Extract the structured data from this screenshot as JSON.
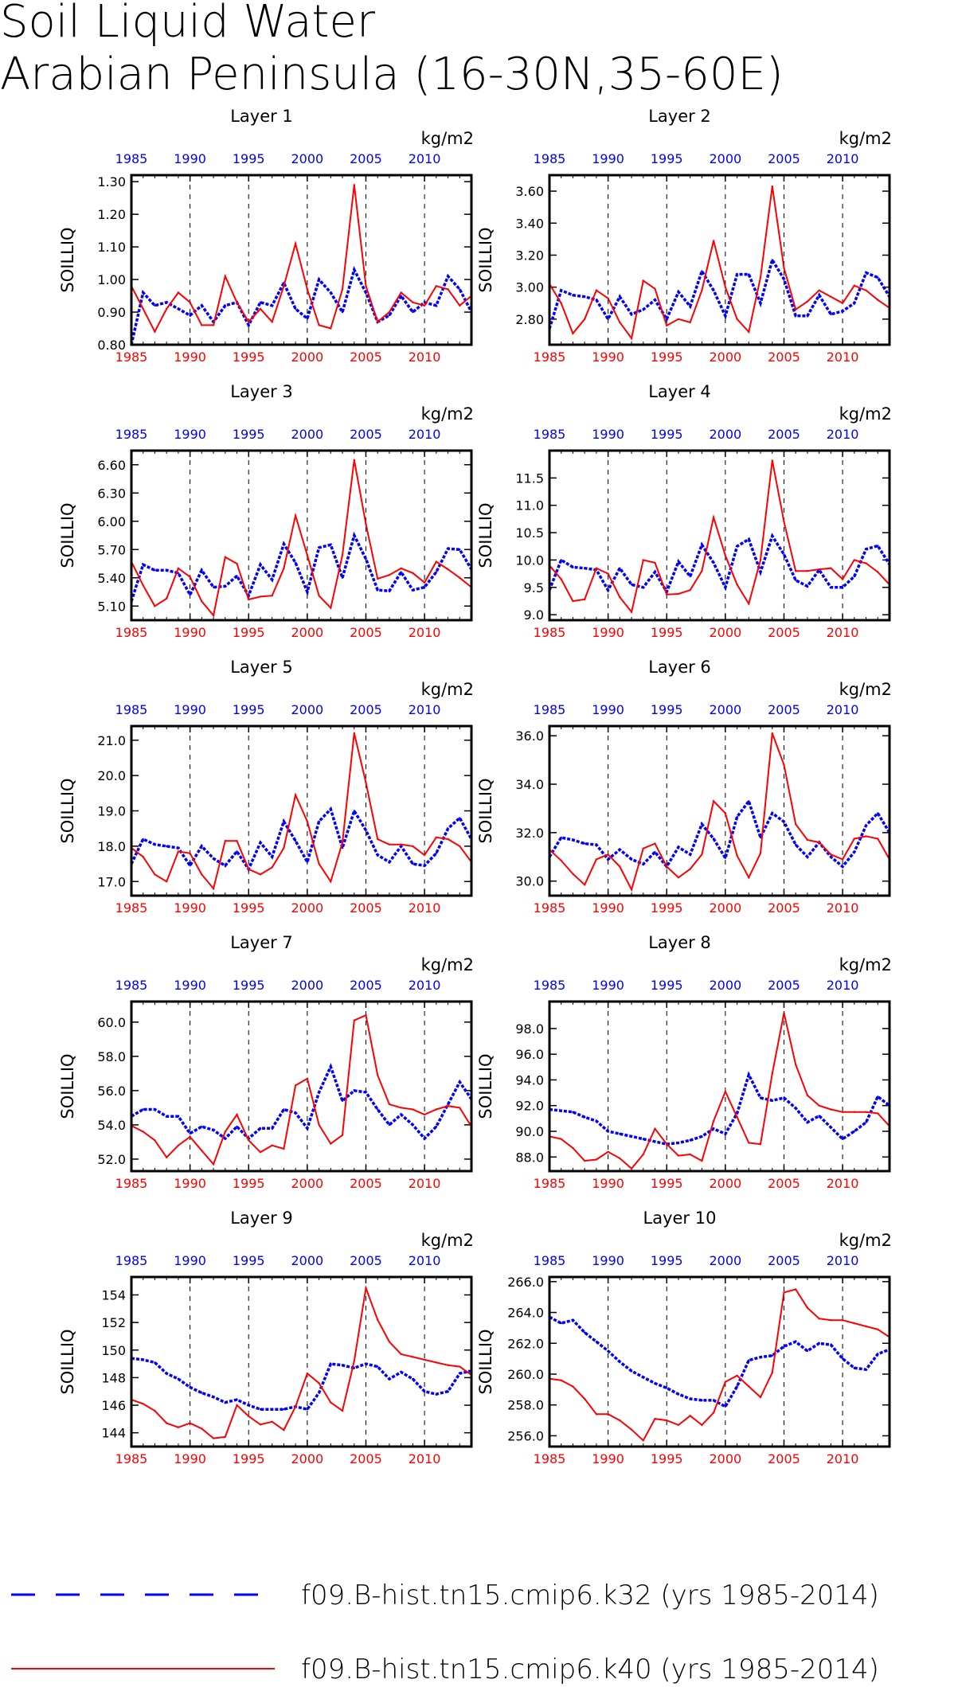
{
  "title_line1": "Soil Liquid Water",
  "title_line2": "Arabian Peninsula (16-30N,35-60E)",
  "units": "kg/m2",
  "ylabel": "SOILLIQ",
  "series_names": [
    "f09.B-hist.tn15.cmip6.k32 (yrs 1985-2014)",
    "f09.B-hist.tn15.cmip6.k40 (yrs 1985-2014)"
  ],
  "colors": {
    "blue": "#0000ff",
    "red": "#ff0000",
    "axis": "#000000"
  },
  "years": [
    1985,
    1986,
    1987,
    1988,
    1989,
    1990,
    1991,
    1992,
    1993,
    1994,
    1995,
    1996,
    1997,
    1998,
    1999,
    2000,
    2001,
    2002,
    2003,
    2004,
    2005,
    2006,
    2007,
    2008,
    2009,
    2010,
    2011,
    2012,
    2013,
    2014
  ],
  "xticks": [
    1985,
    1990,
    1995,
    2000,
    2005,
    2010
  ],
  "dashed_years": [
    1990,
    1995,
    2000,
    2005,
    2010
  ],
  "chart_data": [
    {
      "type": "line",
      "title": "Layer 1",
      "ylabel": "SOILLIQ",
      "ylim": [
        0.8,
        1.32
      ],
      "yticks": [
        "0.80",
        "0.90",
        "1.00",
        "1.10",
        "1.20",
        "1.30"
      ],
      "series": [
        {
          "name": "f09.B-hist.tn15.cmip6.k32 (yrs 1985-2014)",
          "color": "#0000ff",
          "style": "dashed",
          "values": [
            0.8,
            0.96,
            0.92,
            0.93,
            0.91,
            0.89,
            0.92,
            0.87,
            0.92,
            0.93,
            0.86,
            0.93,
            0.92,
            0.99,
            0.91,
            0.88,
            1.0,
            0.96,
            0.9,
            1.03,
            0.96,
            0.87,
            0.89,
            0.95,
            0.9,
            0.93,
            0.92,
            1.01,
            0.97,
            0.9
          ]
        },
        {
          "name": "f09.B-hist.tn15.cmip6.k40 (yrs 1985-2014)",
          "color": "#ff0000",
          "style": "solid",
          "values": [
            0.98,
            0.91,
            0.84,
            0.91,
            0.96,
            0.93,
            0.86,
            0.86,
            1.01,
            0.93,
            0.87,
            0.91,
            0.87,
            0.98,
            1.11,
            0.97,
            0.86,
            0.85,
            0.97,
            1.29,
            0.98,
            0.87,
            0.9,
            0.96,
            0.93,
            0.92,
            0.98,
            0.97,
            0.92,
            0.95
          ]
        }
      ]
    },
    {
      "type": "line",
      "title": "Layer 2",
      "ylabel": "SOILLIQ",
      "ylim": [
        2.64,
        3.7
      ],
      "yticks": [
        "2.80",
        "3.00",
        "3.20",
        "3.40",
        "3.60"
      ],
      "series": [
        {
          "name": "f09.B-hist.tn15.cmip6.k32 (yrs 1985-2014)",
          "color": "#0000ff",
          "style": "dashed",
          "values": [
            2.74,
            2.98,
            2.95,
            2.94,
            2.92,
            2.8,
            2.94,
            2.83,
            2.86,
            2.92,
            2.8,
            2.97,
            2.88,
            3.1,
            2.98,
            2.82,
            3.08,
            3.08,
            2.9,
            3.17,
            3.05,
            2.82,
            2.82,
            2.95,
            2.83,
            2.85,
            2.9,
            3.09,
            3.06,
            2.94
          ]
        },
        {
          "name": "f09.B-hist.tn15.cmip6.k40 (yrs 1985-2014)",
          "color": "#ff0000",
          "style": "solid",
          "values": [
            3.02,
            2.9,
            2.71,
            2.8,
            2.98,
            2.93,
            2.78,
            2.68,
            3.04,
            2.99,
            2.76,
            2.8,
            2.78,
            2.98,
            3.29,
            3.0,
            2.8,
            2.72,
            3.06,
            3.63,
            3.12,
            2.86,
            2.91,
            2.98,
            2.94,
            2.9,
            3.01,
            2.98,
            2.92,
            2.87
          ]
        }
      ]
    },
    {
      "type": "line",
      "title": "Layer 3",
      "ylabel": "SOILLIQ",
      "ylim": [
        4.95,
        6.75
      ],
      "yticks": [
        "5.10",
        "5.40",
        "5.70",
        "6.00",
        "6.30",
        "6.60"
      ],
      "series": [
        {
          "name": "f09.B-hist.tn15.cmip6.k32 (yrs 1985-2014)",
          "color": "#0000ff",
          "style": "dashed",
          "values": [
            5.15,
            5.54,
            5.48,
            5.48,
            5.45,
            5.22,
            5.48,
            5.3,
            5.31,
            5.42,
            5.21,
            5.54,
            5.38,
            5.76,
            5.56,
            5.25,
            5.72,
            5.75,
            5.4,
            5.85,
            5.6,
            5.27,
            5.26,
            5.46,
            5.27,
            5.3,
            5.46,
            5.71,
            5.7,
            5.49
          ]
        },
        {
          "name": "f09.B-hist.tn15.cmip6.k40 (yrs 1985-2014)",
          "color": "#ff0000",
          "style": "solid",
          "values": [
            5.57,
            5.32,
            5.1,
            5.18,
            5.5,
            5.41,
            5.15,
            5.0,
            5.62,
            5.55,
            5.17,
            5.2,
            5.21,
            5.5,
            6.06,
            5.64,
            5.21,
            5.08,
            5.64,
            6.65,
            5.97,
            5.39,
            5.43,
            5.5,
            5.45,
            5.35,
            5.57,
            5.49,
            5.4,
            5.3
          ]
        }
      ]
    },
    {
      "type": "line",
      "title": "Layer 4",
      "ylabel": "SOILLIQ",
      "ylim": [
        8.9,
        12.0
      ],
      "yticks": [
        "9.0",
        "9.5",
        "10.0",
        "10.5",
        "11.0",
        "11.5"
      ],
      "series": [
        {
          "name": "f09.B-hist.tn15.cmip6.k32 (yrs 1985-2014)",
          "color": "#0000ff",
          "style": "dashed",
          "values": [
            9.45,
            10.0,
            9.87,
            9.85,
            9.82,
            9.45,
            9.85,
            9.55,
            9.5,
            9.78,
            9.42,
            9.97,
            9.7,
            10.28,
            9.95,
            9.5,
            10.25,
            10.38,
            9.78,
            10.44,
            10.1,
            9.63,
            9.52,
            9.82,
            9.5,
            9.5,
            9.7,
            10.2,
            10.26,
            9.92
          ]
        },
        {
          "name": "f09.B-hist.tn15.cmip6.k40 (yrs 1985-2014)",
          "color": "#ff0000",
          "style": "solid",
          "values": [
            9.9,
            9.65,
            9.25,
            9.28,
            9.85,
            9.75,
            9.32,
            9.05,
            10.0,
            9.95,
            9.37,
            9.38,
            9.45,
            9.8,
            10.78,
            10.08,
            9.55,
            9.2,
            10.0,
            11.82,
            10.7,
            9.8,
            9.8,
            9.83,
            9.85,
            9.65,
            10.0,
            9.94,
            9.78,
            9.55
          ]
        }
      ]
    },
    {
      "type": "line",
      "title": "Layer 5",
      "ylabel": "SOILLIQ",
      "ylim": [
        16.6,
        21.4
      ],
      "yticks": [
        "17.0",
        "18.0",
        "19.0",
        "20.0",
        "21.0"
      ],
      "series": [
        {
          "name": "f09.B-hist.tn15.cmip6.k32 (yrs 1985-2014)",
          "color": "#0000ff",
          "style": "dashed",
          "values": [
            17.5,
            18.2,
            18.05,
            18.0,
            17.95,
            17.45,
            18.0,
            17.65,
            17.45,
            17.85,
            17.35,
            18.1,
            17.7,
            18.7,
            18.15,
            17.55,
            18.7,
            19.05,
            17.95,
            19.0,
            18.45,
            17.75,
            17.55,
            18.0,
            17.5,
            17.45,
            17.8,
            18.5,
            18.8,
            18.2
          ]
        },
        {
          "name": "f09.B-hist.tn15.cmip6.k40 (yrs 1985-2014)",
          "color": "#ff0000",
          "style": "solid",
          "values": [
            17.95,
            17.7,
            17.2,
            17.0,
            17.85,
            17.8,
            17.2,
            16.8,
            18.15,
            18.15,
            17.35,
            17.2,
            17.4,
            17.95,
            19.45,
            18.7,
            17.5,
            17.0,
            18.1,
            21.2,
            19.8,
            18.2,
            18.05,
            18.05,
            18.0,
            17.75,
            18.25,
            18.2,
            18.0,
            17.55
          ]
        }
      ]
    },
    {
      "type": "line",
      "title": "Layer 6",
      "ylabel": "SOILLIQ",
      "ylim": [
        29.4,
        36.4
      ],
      "yticks": [
        "30.0",
        "32.0",
        "34.0",
        "36.0"
      ],
      "series": [
        {
          "name": "f09.B-hist.tn15.cmip6.k32 (yrs 1985-2014)",
          "color": "#0000ff",
          "style": "dashed",
          "values": [
            31.0,
            31.8,
            31.7,
            31.55,
            31.5,
            30.9,
            31.3,
            30.9,
            30.7,
            31.2,
            30.6,
            31.4,
            31.1,
            32.35,
            31.75,
            30.95,
            32.65,
            33.3,
            31.8,
            32.8,
            32.45,
            31.5,
            31.0,
            31.6,
            31.0,
            30.6,
            31.2,
            32.3,
            32.8,
            32.0
          ]
        },
        {
          "name": "f09.B-hist.tn15.cmip6.k40 (yrs 1985-2014)",
          "color": "#ff0000",
          "style": "solid",
          "values": [
            31.3,
            30.85,
            30.3,
            29.85,
            30.9,
            31.1,
            30.6,
            29.65,
            31.35,
            31.55,
            30.6,
            30.15,
            30.5,
            31.1,
            33.3,
            32.8,
            31.05,
            30.15,
            31.15,
            36.1,
            34.8,
            32.35,
            31.7,
            31.6,
            31.1,
            30.9,
            31.75,
            31.85,
            31.75,
            30.9
          ]
        }
      ]
    },
    {
      "type": "line",
      "title": "Layer 7",
      "ylabel": "SOILLIQ",
      "ylim": [
        51.3,
        61.2
      ],
      "yticks": [
        "52.0",
        "54.0",
        "56.0",
        "58.0",
        "60.0"
      ],
      "series": [
        {
          "name": "f09.B-hist.tn15.cmip6.k32 (yrs 1985-2014)",
          "color": "#0000ff",
          "style": "dashed",
          "values": [
            54.5,
            54.9,
            54.9,
            54.5,
            54.5,
            53.5,
            53.9,
            53.7,
            53.2,
            53.9,
            53.2,
            53.8,
            53.8,
            54.9,
            54.7,
            53.8,
            55.9,
            57.4,
            55.4,
            56.0,
            55.9,
            54.9,
            54.0,
            54.6,
            54.0,
            53.2,
            53.9,
            55.2,
            56.5,
            55.5
          ]
        },
        {
          "name": "f09.B-hist.tn15.cmip6.k40 (yrs 1985-2014)",
          "color": "#ff0000",
          "style": "solid",
          "values": [
            53.95,
            53.6,
            53.1,
            52.1,
            52.8,
            53.3,
            52.5,
            51.7,
            53.6,
            54.6,
            53.1,
            52.4,
            52.8,
            52.6,
            56.3,
            56.7,
            54.0,
            52.9,
            53.4,
            60.1,
            60.4,
            56.9,
            55.2,
            55.0,
            54.9,
            54.6,
            54.9,
            55.1,
            55.0,
            53.9
          ]
        }
      ]
    },
    {
      "type": "line",
      "title": "Layer 8",
      "ylabel": "SOILLIQ",
      "ylim": [
        86.9,
        100.1
      ],
      "yticks": [
        "88.0",
        "90.0",
        "92.0",
        "94.0",
        "96.0",
        "98.0"
      ],
      "series": [
        {
          "name": "f09.B-hist.tn15.cmip6.k32 (yrs 1985-2014)",
          "color": "#0000ff",
          "style": "dashed",
          "values": [
            91.7,
            91.6,
            91.5,
            91.1,
            90.8,
            90.0,
            89.8,
            89.6,
            89.4,
            89.2,
            89.0,
            89.1,
            89.3,
            89.6,
            90.2,
            89.8,
            91.4,
            94.4,
            92.6,
            92.4,
            92.6,
            91.8,
            90.7,
            91.2,
            90.3,
            89.4,
            90.0,
            90.7,
            92.7,
            92.0
          ]
        },
        {
          "name": "f09.B-hist.tn15.cmip6.k40 (yrs 1985-2014)",
          "color": "#ff0000",
          "style": "solid",
          "values": [
            89.6,
            89.4,
            88.7,
            87.7,
            87.8,
            88.4,
            87.9,
            87.1,
            88.2,
            90.2,
            89.0,
            88.1,
            88.2,
            87.7,
            90.8,
            93.1,
            91.1,
            89.1,
            89.0,
            94.5,
            99.2,
            95.2,
            92.8,
            92.0,
            91.7,
            91.5,
            91.5,
            91.5,
            91.4,
            90.4
          ]
        }
      ]
    },
    {
      "type": "line",
      "title": "Layer 9",
      "ylabel": "SOILLIQ",
      "ylim": [
        143.0,
        155.3
      ],
      "yticks": [
        "144",
        "146",
        "148",
        "150",
        "152",
        "154"
      ],
      "series": [
        {
          "name": "f09.B-hist.tn15.cmip6.k32 (yrs 1985-2014)",
          "color": "#0000ff",
          "style": "dashed",
          "values": [
            149.4,
            149.3,
            149.1,
            148.3,
            147.9,
            147.3,
            146.9,
            146.6,
            146.2,
            146.4,
            146.0,
            145.7,
            145.7,
            145.7,
            145.9,
            145.7,
            146.9,
            149.0,
            148.9,
            148.7,
            149.0,
            148.8,
            147.9,
            148.4,
            147.9,
            147.0,
            146.8,
            147.0,
            148.3,
            148.5
          ]
        },
        {
          "name": "f09.B-hist.tn15.cmip6.k40 (yrs 1985-2014)",
          "color": "#ff0000",
          "style": "solid",
          "values": [
            146.4,
            146.1,
            145.6,
            144.7,
            144.4,
            144.7,
            144.3,
            143.6,
            143.7,
            146.0,
            145.2,
            144.6,
            144.8,
            144.2,
            145.9,
            148.3,
            147.6,
            146.2,
            145.6,
            149.2,
            154.5,
            152.2,
            150.6,
            149.7,
            149.5,
            149.3,
            149.1,
            148.9,
            148.8,
            148.2
          ]
        }
      ]
    },
    {
      "type": "line",
      "title": "Layer 10",
      "ylabel": "SOILLIQ",
      "ylim": [
        255.3,
        266.3
      ],
      "yticks": [
        "256.0",
        "258.0",
        "260.0",
        "262.0",
        "264.0",
        "266.0"
      ],
      "series": [
        {
          "name": "f09.B-hist.tn15.cmip6.k32 (yrs 1985-2014)",
          "color": "#0000ff",
          "style": "dashed",
          "values": [
            263.7,
            263.3,
            263.5,
            262.7,
            262.1,
            261.5,
            260.8,
            260.2,
            259.8,
            259.4,
            259.1,
            258.7,
            258.4,
            258.3,
            258.3,
            257.9,
            259.2,
            260.9,
            261.1,
            261.2,
            261.8,
            262.1,
            261.5,
            262.0,
            261.9,
            261.0,
            260.4,
            260.3,
            261.3,
            261.6
          ]
        },
        {
          "name": "f09.B-hist.tn15.cmip6.k40 (yrs 1985-2014)",
          "color": "#ff0000",
          "style": "solid",
          "values": [
            259.7,
            259.6,
            259.2,
            258.4,
            257.4,
            257.4,
            257.0,
            256.4,
            255.7,
            257.1,
            257.0,
            256.7,
            257.3,
            256.7,
            257.5,
            259.5,
            259.9,
            259.2,
            258.5,
            260.1,
            265.3,
            265.5,
            264.3,
            263.6,
            263.5,
            263.5,
            263.3,
            263.1,
            262.9,
            262.4
          ]
        }
      ]
    }
  ]
}
